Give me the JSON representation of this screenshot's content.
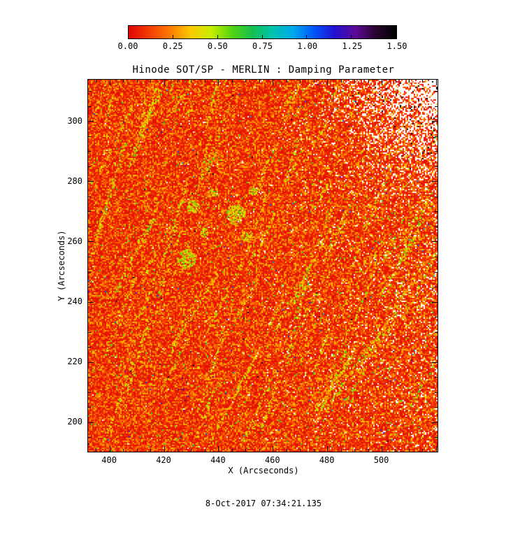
{
  "chart_data": {
    "type": "heatmap",
    "title": "Hinode SOT/SP - MERLIN : Damping Parameter",
    "xlabel": "X (Arcseconds)",
    "ylabel": "Y (Arcseconds)",
    "xlim": [
      392,
      520.4
    ],
    "ylim": [
      190.3,
      313.9
    ],
    "x_ticks": [
      400,
      420,
      440,
      460,
      480,
      500
    ],
    "y_ticks": [
      200,
      220,
      240,
      260,
      280,
      300
    ],
    "minor_tick_step": 5,
    "grid": false,
    "legend": "none",
    "colorbar": {
      "orientation": "horizontal",
      "min": 0.0,
      "max": 1.5,
      "ticks": [
        "0.00",
        "0.25",
        "0.50",
        "0.75",
        "1.00",
        "1.25",
        "1.50"
      ],
      "colormap": [
        "#dd0505",
        "#f53c02",
        "#fd7a00",
        "#fdc800",
        "#c8ee00",
        "#55d410",
        "#15c050",
        "#00c4b0",
        "#00a8ee",
        "#0055fa",
        "#2410d0",
        "#5c0a9a",
        "#2a0430",
        "#000000"
      ]
    },
    "value_description": "Damping parameter map: field mostly 0.0-0.2 (red/orange speckle) with diagonal fibril streaks of 0.25-0.6 (yellow/green); white missing-data speckles increase toward the right edge and dominate the upper-right corner, with sparse dark/blue outlier pixels.",
    "timestamp": "8-Oct-2017 07:34:21.135",
    "background_color": "#ffffff",
    "base_field_color": "#e83a0d"
  }
}
